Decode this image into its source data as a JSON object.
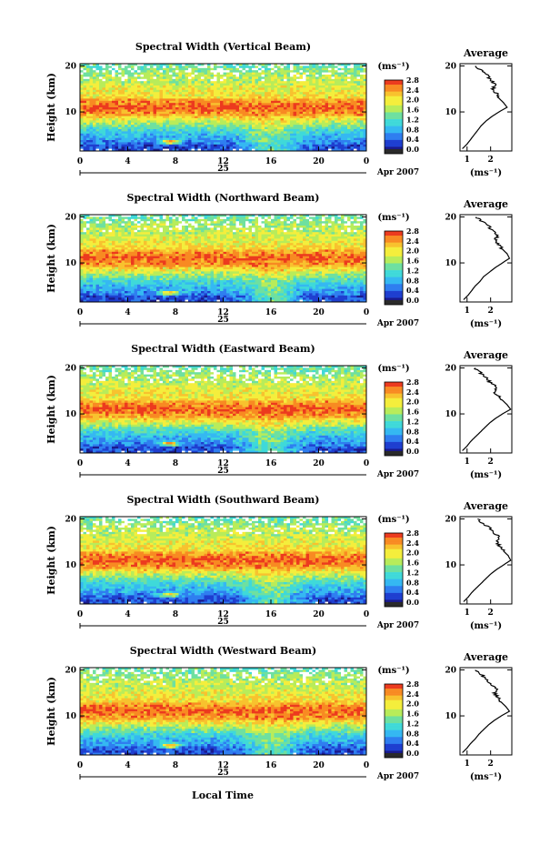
{
  "chart_data": [
    {
      "type": "heatmap",
      "title": "Spectral Width (Vertical Beam)",
      "ylabel": "Height (km)",
      "x_ticks": [
        "0",
        "4",
        "8",
        "12",
        "16",
        "20",
        "0"
      ],
      "date_label": "25",
      "month_label": "Apr 2007",
      "y_ticks": [
        "20",
        "10"
      ],
      "xlim": [
        0,
        24
      ],
      "ylim": [
        1.5,
        20.5
      ],
      "colorbar_unit": "(ms⁻¹)",
      "colorbar_ticks": [
        "2.8",
        "2.4",
        "2.0",
        "1.6",
        "1.2",
        "0.8",
        "0.4",
        "0.0"
      ],
      "colorbar_range": [
        0,
        2.8
      ],
      "average": {
        "title": "Average",
        "xlabel": "(ms⁻¹)",
        "x_ticks": [
          "1",
          "2"
        ],
        "xlim": [
          0.7,
          2.9
        ],
        "height": [
          2,
          3,
          4,
          5,
          6,
          7,
          8,
          9,
          10,
          11,
          12,
          13,
          14,
          15,
          16,
          17,
          18,
          19,
          20
        ],
        "value": [
          0.8,
          1.0,
          1.15,
          1.3,
          1.45,
          1.6,
          1.8,
          2.05,
          2.35,
          2.7,
          2.55,
          2.35,
          2.25,
          2.1,
          2.2,
          2.0,
          1.85,
          1.6,
          1.35
        ]
      }
    },
    {
      "type": "heatmap",
      "title": "Spectral Width (Northward Beam)",
      "ylabel": "Height (km)",
      "x_ticks": [
        "0",
        "4",
        "8",
        "12",
        "16",
        "20",
        "0"
      ],
      "date_label": "25",
      "month_label": "Apr 2007",
      "y_ticks": [
        "20",
        "10"
      ],
      "xlim": [
        0,
        24
      ],
      "ylim": [
        1.5,
        20.5
      ],
      "colorbar_unit": "(ms⁻¹)",
      "colorbar_ticks": [
        "2.8",
        "2.4",
        "2.0",
        "1.6",
        "1.2",
        "0.8",
        "0.4",
        "0.0"
      ],
      "colorbar_range": [
        0,
        2.8
      ],
      "average": {
        "title": "Average",
        "xlabel": "(ms⁻¹)",
        "x_ticks": [
          "1",
          "2"
        ],
        "xlim": [
          0.7,
          2.9
        ],
        "height": [
          2,
          3,
          4,
          5,
          6,
          7,
          8,
          9,
          10,
          11,
          12,
          13,
          14,
          15,
          16,
          17,
          18,
          19,
          20
        ],
        "value": [
          0.85,
          1.05,
          1.2,
          1.35,
          1.55,
          1.7,
          1.95,
          2.2,
          2.5,
          2.8,
          2.7,
          2.5,
          2.35,
          2.2,
          2.3,
          2.1,
          1.9,
          1.65,
          1.4
        ]
      }
    },
    {
      "type": "heatmap",
      "title": "Spectral Width (Eastward Beam)",
      "ylabel": "Height (km)",
      "x_ticks": [
        "0",
        "4",
        "8",
        "12",
        "16",
        "20",
        "0"
      ],
      "date_label": "25",
      "month_label": "Apr 2007",
      "y_ticks": [
        "20",
        "10"
      ],
      "xlim": [
        0,
        24
      ],
      "ylim": [
        1.5,
        20.5
      ],
      "colorbar_unit": "(ms⁻¹)",
      "colorbar_ticks": [
        "2.8",
        "2.4",
        "2.0",
        "1.6",
        "1.2",
        "0.8",
        "0.4",
        "0.0"
      ],
      "colorbar_range": [
        0,
        2.8
      ],
      "average": {
        "title": "Average",
        "xlabel": "(ms⁻¹)",
        "x_ticks": [
          "1",
          "2"
        ],
        "xlim": [
          0.7,
          2.9
        ],
        "height": [
          2,
          3,
          4,
          5,
          6,
          7,
          8,
          9,
          10,
          11,
          12,
          13,
          14,
          15,
          16,
          17,
          18,
          19,
          20
        ],
        "value": [
          0.8,
          1.0,
          1.15,
          1.35,
          1.55,
          1.75,
          1.95,
          2.2,
          2.5,
          2.85,
          2.7,
          2.5,
          2.3,
          2.15,
          2.25,
          1.95,
          1.8,
          1.55,
          1.35
        ]
      }
    },
    {
      "type": "heatmap",
      "title": "Spectral Width (Southward Beam)",
      "ylabel": "Height (km)",
      "x_ticks": [
        "0",
        "4",
        "8",
        "12",
        "16",
        "20",
        "0"
      ],
      "date_label": "25",
      "month_label": "Apr 2007",
      "y_ticks": [
        "20",
        "10"
      ],
      "xlim": [
        0,
        24
      ],
      "ylim": [
        1.5,
        20.5
      ],
      "colorbar_unit": "(ms⁻¹)",
      "colorbar_ticks": [
        "2.8",
        "2.4",
        "2.0",
        "1.6",
        "1.2",
        "0.8",
        "0.4",
        "0.0"
      ],
      "colorbar_range": [
        0,
        2.8
      ],
      "average": {
        "title": "Average",
        "xlabel": "(ms⁻¹)",
        "x_ticks": [
          "1",
          "2"
        ],
        "xlim": [
          0.7,
          2.9
        ],
        "height": [
          2,
          3,
          4,
          5,
          6,
          7,
          8,
          9,
          10,
          11,
          12,
          13,
          14,
          15,
          16,
          17,
          18,
          19,
          20
        ],
        "value": [
          0.85,
          1.05,
          1.2,
          1.4,
          1.6,
          1.8,
          2.0,
          2.25,
          2.55,
          2.85,
          2.75,
          2.55,
          2.4,
          2.25,
          2.35,
          2.15,
          1.95,
          1.7,
          1.45
        ]
      }
    },
    {
      "type": "heatmap",
      "title": "Spectral Width (Westward Beam)",
      "ylabel": "Height (km)",
      "x_ticks": [
        "0",
        "4",
        "8",
        "12",
        "16",
        "20",
        "0"
      ],
      "date_label": "25",
      "month_label": "Apr 2007",
      "y_ticks": [
        "20",
        "10"
      ],
      "xlim": [
        0,
        24
      ],
      "ylim": [
        1.5,
        20.5
      ],
      "colorbar_unit": "(ms⁻¹)",
      "colorbar_ticks": [
        "2.8",
        "2.4",
        "2.0",
        "1.6",
        "1.2",
        "0.8",
        "0.4",
        "0.0"
      ],
      "colorbar_range": [
        0,
        2.8
      ],
      "average": {
        "title": "Average",
        "xlabel": "(ms⁻¹)",
        "x_ticks": [
          "1",
          "2"
        ],
        "xlim": [
          0.7,
          2.9
        ],
        "height": [
          2,
          3,
          4,
          5,
          6,
          7,
          8,
          9,
          10,
          11,
          12,
          13,
          14,
          15,
          16,
          17,
          18,
          19,
          20
        ],
        "value": [
          0.8,
          1.0,
          1.15,
          1.35,
          1.5,
          1.7,
          1.9,
          2.15,
          2.45,
          2.8,
          2.65,
          2.45,
          2.3,
          2.15,
          2.25,
          2.0,
          1.85,
          1.6,
          1.35
        ]
      }
    }
  ],
  "xlabel_bottom": "Local Time",
  "colors": {
    "scale": [
      "#1a1a8c",
      "#1f3fd0",
      "#2f7ef0",
      "#35b8f2",
      "#3fd9d9",
      "#6ee0a0",
      "#b8ec5a",
      "#f4ee3c",
      "#f8c22e",
      "#f88a22",
      "#ec3a1e"
    ],
    "bad_value": "#2a2a2a",
    "missing": "#ffffff"
  }
}
